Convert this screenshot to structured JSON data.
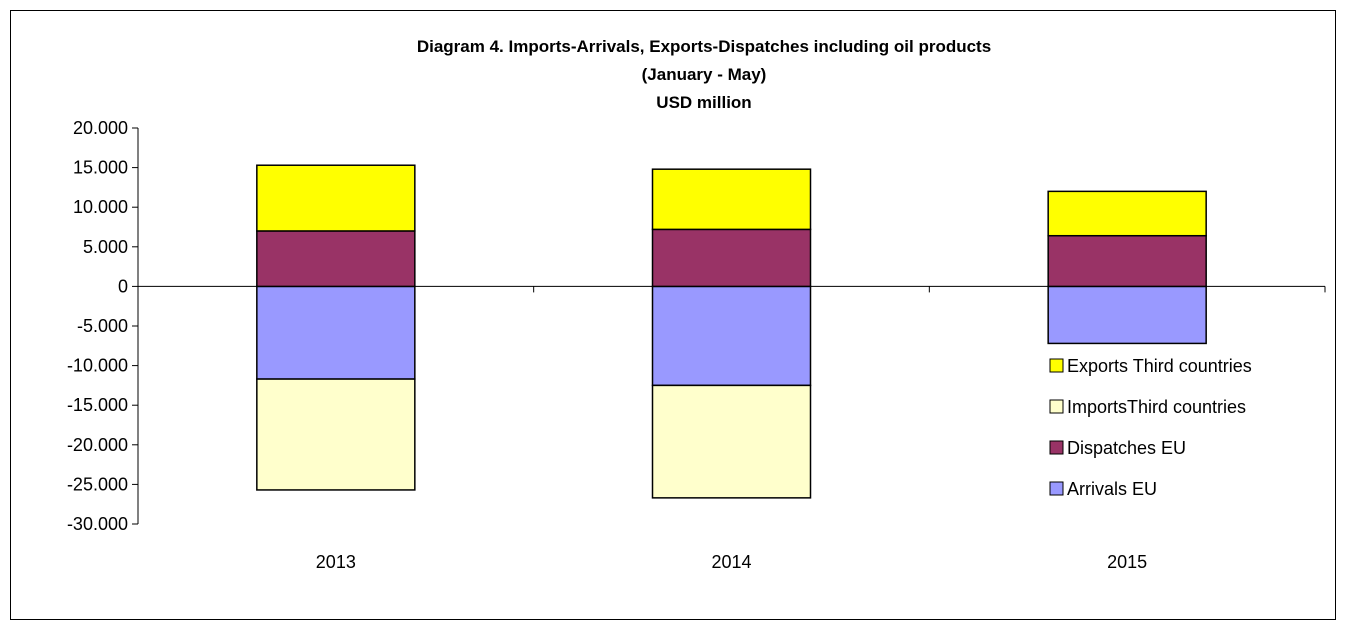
{
  "chart_data": {
    "type": "bar",
    "stacked": true,
    "title": [
      "Diagram 4.  Imports-Arrivals, Exports-Dispatches including oil products",
      "(January - May)",
      "USD million"
    ],
    "categories": [
      "2013",
      "2014",
      "2015"
    ],
    "series": [
      {
        "name": "Arrivals EU",
        "values": [
          -11700,
          -12500,
          -7200
        ],
        "color": "#9999ff"
      },
      {
        "name": "ImportsThird countries",
        "values": [
          -14000,
          -14200,
          0
        ],
        "color": "#ffffcc"
      },
      {
        "name": "Dispatches EU",
        "values": [
          7000,
          7200,
          6400
        ],
        "color": "#993366"
      },
      {
        "name": "Exports Third countries",
        "values": [
          8300,
          7600,
          5600
        ],
        "color": "#ffff00"
      }
    ],
    "ylim": [
      -30000,
      20000
    ],
    "ytick_step": 5000,
    "ytick_labels": [
      "20.000",
      "15.000",
      "10.000",
      "5.000",
      "0",
      "-5.000",
      "-10.000",
      "-15.000",
      "-20.000",
      "-25.000",
      "-30.000"
    ],
    "legend_order": [
      "Exports Third countries",
      "ImportsThird countries",
      "Dispatches EU",
      "Arrivals EU"
    ],
    "legend_position": "right",
    "grid": false
  }
}
